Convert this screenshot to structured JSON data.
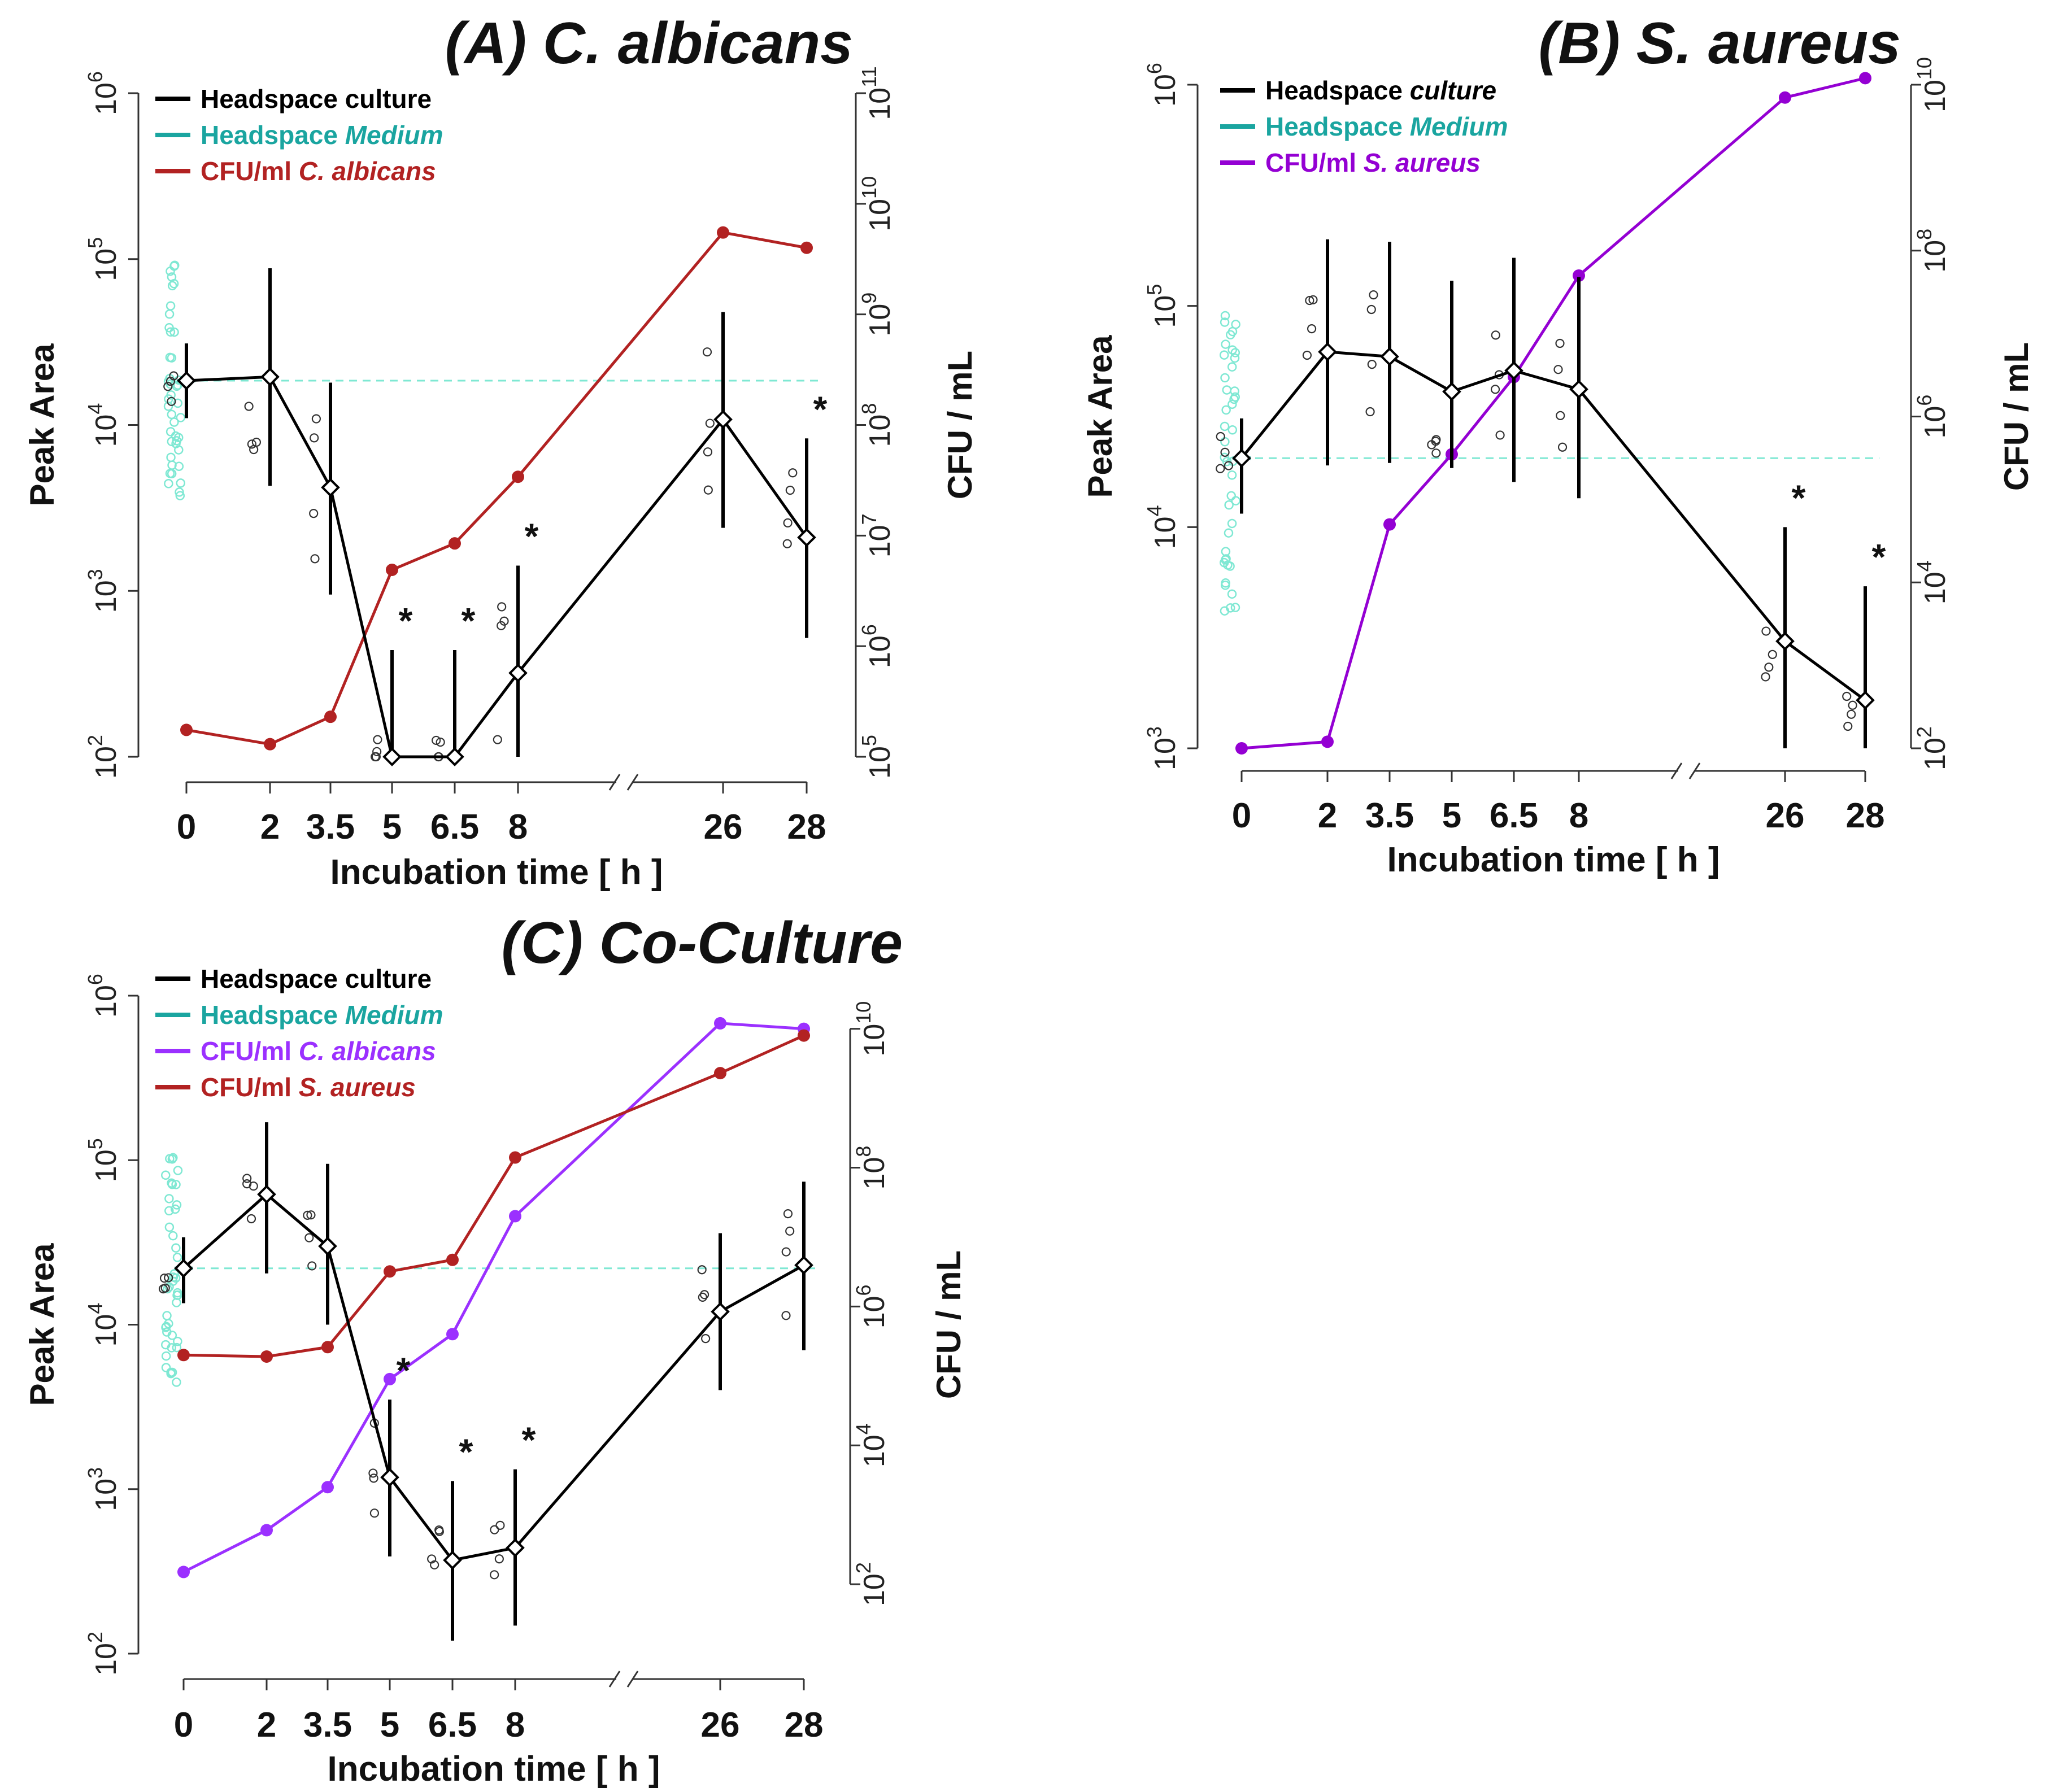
{
  "figure": {
    "x_unit": "[ h ]"
  },
  "chart_data": [
    {
      "id": "A",
      "type": "line",
      "title": "(A) C. albicans",
      "xlabel": "Incubation time  [ h ]",
      "ylabel_left": "Peak Area",
      "ylabel_right": "CFU / mL",
      "x_ticks": [
        "0",
        "2",
        "3.5",
        "5",
        "6.5",
        "8",
        "26",
        "28"
      ],
      "x_axis_break_between": [
        "8",
        "26"
      ],
      "left_axis": {
        "scale": "log10",
        "ylim": [
          100,
          1000000
        ],
        "tick_exponents": [
          2,
          3,
          4,
          5,
          6
        ]
      },
      "right_axis": {
        "scale": "log10",
        "ylim": [
          100000,
          100000000000
        ],
        "tick_exponents": [
          5,
          6,
          7,
          8,
          9,
          10,
          11
        ]
      },
      "legend": [
        {
          "label": "Headspace culture",
          "color": "#000000"
        },
        {
          "label": "Headspace",
          "label_italic": "Medium",
          "color": "#1aa5a0"
        },
        {
          "label": "CFU/ml",
          "label_italic": "C. albicans",
          "color": "#b22222"
        }
      ],
      "headspace_culture": {
        "x": [
          "0",
          "2",
          "3.5",
          "5",
          "6.5",
          "8",
          "26",
          "28"
        ],
        "y": [
          18500,
          19500,
          4200,
          100,
          100,
          320,
          10800,
          2100
        ],
        "err_low": [
          11000,
          4300,
          950,
          100,
          100,
          100,
          2400,
          520
        ],
        "err_high": [
          31000,
          88000,
          18000,
          440,
          440,
          1420,
          48000,
          8300
        ]
      },
      "medium_reference": {
        "y": 18500,
        "err_low": 11000,
        "err_high": 31000
      },
      "cfu_series": [
        {
          "name": "CFU/ml C. albicans",
          "color": "#b22222",
          "x": [
            "0",
            "2",
            "3.5",
            "5",
            "6.5",
            "8",
            "26",
            "28"
          ],
          "y": [
            175000,
            130000,
            230000,
            4900000,
            8500000,
            34000000,
            5500000000,
            4000000000
          ]
        }
      ],
      "significance_marks": [
        "5",
        "6.5",
        "8",
        "28"
      ],
      "significance_symbol": "*"
    },
    {
      "id": "B",
      "type": "line",
      "title": "(B) S. aureus",
      "xlabel": "Incubation time  [ h ]",
      "ylabel_left": "Peak Area",
      "ylabel_right": "CFU / mL",
      "x_ticks": [
        "0",
        "2",
        "3.5",
        "5",
        "6.5",
        "8",
        "26",
        "28"
      ],
      "x_axis_break_between": [
        "8",
        "26"
      ],
      "left_axis": {
        "scale": "log10",
        "ylim": [
          1000,
          1000000
        ],
        "tick_exponents": [
          3,
          4,
          5,
          6
        ]
      },
      "right_axis": {
        "scale": "log10",
        "ylim": [
          100,
          10000000000
        ],
        "tick_exponents": [
          2,
          4,
          6,
          8,
          10
        ]
      },
      "legend": [
        {
          "label": "Headspace",
          "label_italic": "culture",
          "color": "#000000"
        },
        {
          "label": "Headspace",
          "label_italic": "Medium",
          "color": "#1aa5a0"
        },
        {
          "label": "CFU/ml",
          "label_italic": "S. aureus",
          "color": "#9400d3"
        }
      ],
      "headspace_culture": {
        "x": [
          "0",
          "2",
          "3.5",
          "5",
          "6.5",
          "8",
          "26",
          "28"
        ],
        "y": [
          20500,
          62000,
          59000,
          41000,
          51000,
          42000,
          3050,
          1650
        ],
        "err_low": [
          11500,
          19000,
          19500,
          18500,
          16000,
          13500,
          1000,
          1000
        ],
        "err_high": [
          31000,
          200000,
          195000,
          130000,
          165000,
          135000,
          10000,
          5400
        ]
      },
      "medium_reference": {
        "y": 20500,
        "err_low": 11500,
        "err_high": 31000
      },
      "cfu_series": [
        {
          "name": "CFU/ml S. aureus",
          "color": "#9400d3",
          "x": [
            "0",
            "2",
            "3.5",
            "5",
            "6.5",
            "8",
            "26",
            "28"
          ],
          "y": [
            100,
            120,
            50000,
            350000,
            3000000,
            50000000,
            7000000000,
            12000000000
          ]
        }
      ],
      "significance_marks": [
        "26",
        "28"
      ],
      "significance_symbol": "*"
    },
    {
      "id": "C",
      "type": "line",
      "title": "(C) Co-Culture",
      "xlabel": "Incubation time  [ h ]",
      "ylabel_left": "Peak Area",
      "ylabel_right": "CFU / mL",
      "x_ticks": [
        "0",
        "2",
        "3.5",
        "5",
        "6.5",
        "8",
        "26",
        "28"
      ],
      "x_axis_break_between": [
        "8",
        "26"
      ],
      "left_axis": {
        "scale": "log10",
        "ylim": [
          100,
          1000000
        ],
        "tick_exponents": [
          2,
          3,
          4,
          5,
          6
        ]
      },
      "right_axis": {
        "scale": "log10",
        "ylim": [
          10,
          30000000000
        ],
        "tick_exponents": [
          2,
          4,
          6,
          8,
          10
        ]
      },
      "legend": [
        {
          "label": "Headspace culture",
          "color": "#000000"
        },
        {
          "label": "Headspace",
          "label_italic": "Medium",
          "color": "#1aa5a0"
        },
        {
          "label": "CFU/ml",
          "label_italic": "C. albicans",
          "color": "#9b30ff"
        },
        {
          "label": "CFU/ml",
          "label_italic": "S. aureus",
          "color": "#b22222"
        }
      ],
      "headspace_culture": {
        "x": [
          "0",
          "2",
          "3.5",
          "5",
          "6.5",
          "8",
          "26",
          "28"
        ],
        "y": [
          22000,
          62000,
          30000,
          1180,
          370,
          440,
          12000,
          23000
        ],
        "err_low": [
          13500,
          20500,
          10000,
          390,
          120,
          148,
          4000,
          7000
        ],
        "err_high": [
          34000,
          170000,
          95000,
          3500,
          1120,
          1320,
          36000,
          74000
        ]
      },
      "medium_reference": {
        "y": 22000,
        "err_low": 13500,
        "err_high": 34000
      },
      "cfu_series": [
        {
          "name": "CFU/ml C. albicans",
          "color": "#9b30ff",
          "x": [
            "0",
            "2",
            "3.5",
            "5",
            "6.5",
            "8",
            "26",
            "28"
          ],
          "y": [
            150,
            600,
            2500,
            90000,
            400000,
            20000000,
            12000000000,
            10000000000
          ]
        },
        {
          "name": "CFU/ml S. aureus",
          "color": "#b22222",
          "x": [
            "0",
            "2",
            "3.5",
            "5",
            "6.5",
            "8",
            "26",
            "28"
          ],
          "y": [
            200000,
            190000,
            260000,
            3200000,
            4700000,
            140000000,
            2300000000,
            8000000000
          ]
        }
      ],
      "significance_marks": [
        "5",
        "6.5",
        "8"
      ],
      "significance_symbol": "*"
    }
  ]
}
